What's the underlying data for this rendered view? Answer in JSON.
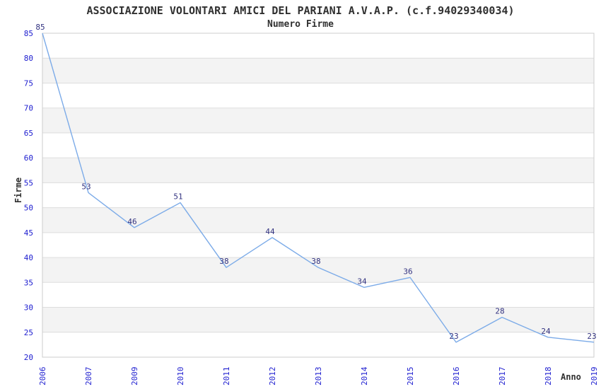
{
  "header": {
    "title": "ASSOCIAZIONE VOLONTARI AMICI DEL PARIANI A.V.A.P. (c.f.94029340034)",
    "subtitle": "Numero Firme"
  },
  "chart_data": {
    "type": "line",
    "title": "ASSOCIAZIONE VOLONTARI AMICI DEL PARIANI A.V.A.P. (c.f.94029340034)",
    "subtitle": "Numero Firme",
    "xlabel": "Anno",
    "ylabel": "Firme",
    "categories": [
      "2006",
      "2007",
      "2009",
      "2010",
      "2011",
      "2012",
      "2013",
      "2014",
      "2015",
      "2016",
      "2017",
      "2018",
      "2019"
    ],
    "values": [
      85,
      53,
      46,
      51,
      38,
      44,
      38,
      34,
      36,
      23,
      28,
      24,
      23
    ],
    "ylim": [
      20,
      85
    ],
    "ytick_step": 5,
    "grid": true,
    "legend": "none",
    "band_fill": true,
    "colors": {
      "line": "#7cabe8",
      "tick_label": "#2020d0",
      "data_label": "#333380",
      "band_gray": "#f3f3f3",
      "gridline": "#dddddd",
      "plot_border": "#cccccc",
      "text": "#303030"
    }
  }
}
